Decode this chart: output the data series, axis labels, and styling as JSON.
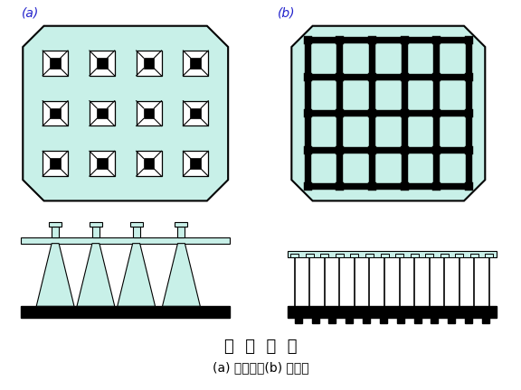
{
  "bg_color": "#ffffff",
  "slab_fill": "#c8f0e8",
  "black": "#000000",
  "blue_label": "#2222cc",
  "title": "筏  板  基  础",
  "subtitle": "(a) 平板式；(b) 梁板式",
  "label_a": "(a)",
  "label_b": "(b)"
}
